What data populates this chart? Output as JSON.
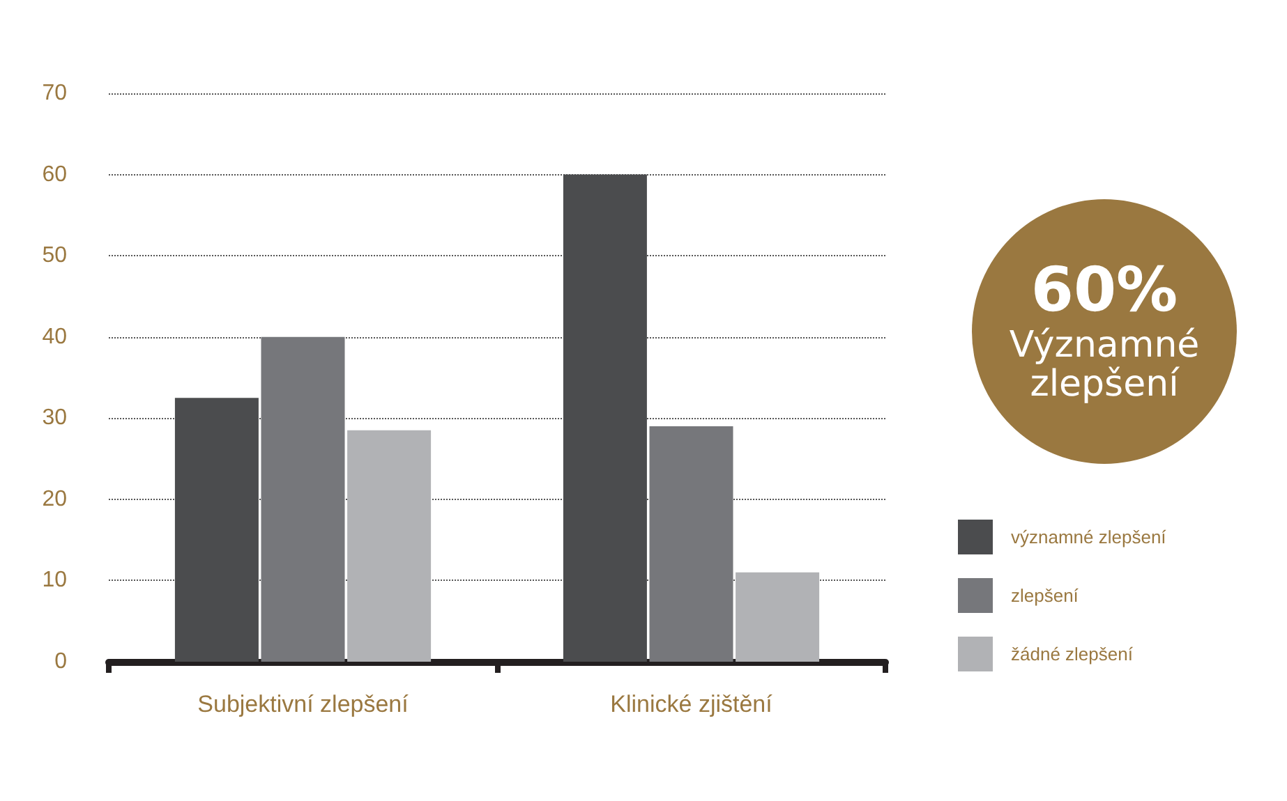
{
  "chart_data": {
    "type": "bar",
    "categories": [
      "Subjektivní zlepšení",
      "Klinické zjištění"
    ],
    "series": [
      {
        "name": "významné zlepšení",
        "color": "#4b4c4e",
        "values": [
          32.5,
          60
        ]
      },
      {
        "name": "zlepšení",
        "color": "#76777b",
        "values": [
          40,
          29
        ]
      },
      {
        "name": "žádné zlepšení",
        "color": "#b1b2b5",
        "values": [
          28.5,
          11
        ]
      }
    ],
    "ylim": [
      0,
      70
    ],
    "yticks": [
      0,
      10,
      20,
      30,
      40,
      50,
      60,
      70
    ],
    "grid": "y",
    "legend": "right",
    "annotations": [
      "60% Významné zlepšení"
    ]
  }
}
